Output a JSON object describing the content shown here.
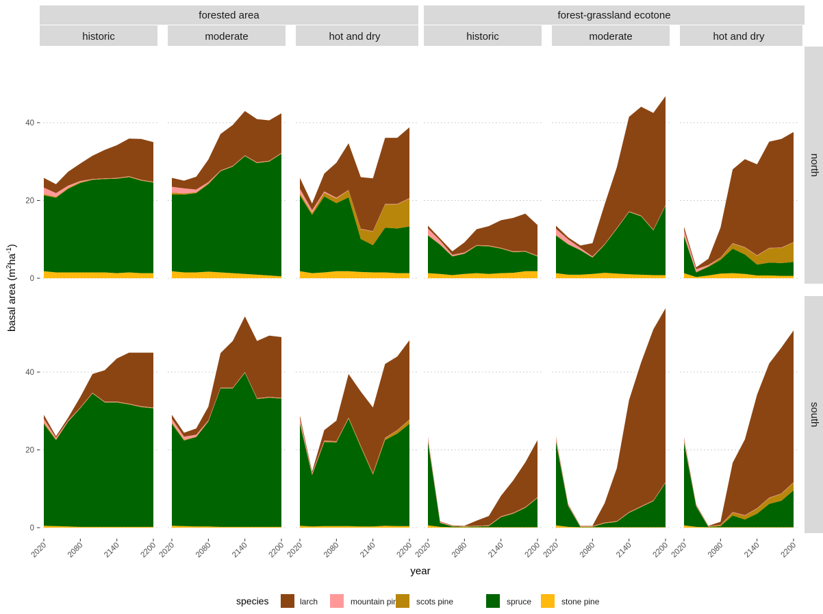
{
  "figure": {
    "y_axis_label": "basal area (m",
    "y_axis_label_sup1": "2",
    "y_axis_label_mid": "ha",
    "y_axis_label_sup2": "-1",
    "y_axis_label_end": ")",
    "x_axis_label": "year",
    "legend_title": "species"
  },
  "chart_data": {
    "type": "area",
    "stacked": true,
    "xlabel": "year",
    "ylabel": "basal area (m2ha-1)",
    "ylim": [
      0,
      57
    ],
    "x_ticks": [
      2020,
      2080,
      2140,
      2200
    ],
    "y_ticks": [
      0,
      20,
      40
    ],
    "grid": true,
    "legend_position": "bottom",
    "x": [
      2020,
      2040,
      2060,
      2080,
      2100,
      2120,
      2140,
      2160,
      2180,
      2200
    ],
    "species": [
      {
        "name": "stone pine",
        "color": "#FFB90F"
      },
      {
        "name": "spruce",
        "color": "#006400"
      },
      {
        "name": "scots pine",
        "color": "#B8860B"
      },
      {
        "name": "mountain pine",
        "color": "#FF9999"
      },
      {
        "name": "larch",
        "color": "#8B4513"
      }
    ],
    "legend_order": [
      "larch",
      "mountain pine",
      "scots pine",
      "spruce",
      "stone pine"
    ],
    "area_groups": [
      "forested area",
      "forest-grassland ecotone"
    ],
    "scenarios": [
      "historic",
      "moderate",
      "hot and dry"
    ],
    "rows": [
      "north",
      "south"
    ],
    "panels": [
      {
        "row": "north",
        "area": "forested area",
        "scenario": "historic",
        "series": {
          "stone pine": [
            1.8,
            1.5,
            1.5,
            1.5,
            1.5,
            1.5,
            1.3,
            1.5,
            1.3,
            1.3
          ],
          "spruce": [
            19.5,
            19.2,
            21.5,
            23,
            23.8,
            24,
            24.3,
            24.5,
            23.8,
            23.3
          ],
          "scots pine": [
            0.3,
            0.2,
            0.2,
            0.2,
            0.1,
            0.1,
            0.1,
            0.1,
            0.1,
            0.1
          ],
          "mountain pine": [
            1.7,
            1,
            0.6,
            0.3,
            0.1,
            0.1,
            0.1,
            0.1,
            0.1,
            0.1
          ],
          "larch": [
            2.5,
            2.3,
            3.6,
            4.5,
            6,
            7.3,
            8.4,
            9.7,
            10.5,
            10.2
          ]
        }
      },
      {
        "row": "north",
        "area": "forested area",
        "scenario": "moderate",
        "series": {
          "stone pine": [
            1.8,
            1.5,
            1.5,
            1.7,
            1.5,
            1.3,
            1.1,
            0.9,
            0.7,
            0.5
          ],
          "spruce": [
            19.7,
            20,
            20.4,
            22.5,
            26,
            27.4,
            30.3,
            28.7,
            29.3,
            31.5
          ],
          "scots pine": [
            0.5,
            0.3,
            0.2,
            0.2,
            0.1,
            0.1,
            0.1,
            0.1,
            0.1,
            0.1
          ],
          "mountain pine": [
            1.5,
            1.3,
            0.7,
            0.3,
            0.1,
            0.1,
            0.1,
            0.1,
            0.1,
            0.1
          ],
          "larch": [
            2.3,
            2.0,
            3.3,
            5.8,
            9.4,
            10.5,
            11.4,
            11.1,
            10.4,
            10.2
          ]
        }
      },
      {
        "row": "north",
        "area": "forested area",
        "scenario": "hot and dry",
        "series": {
          "stone pine": [
            1.8,
            1.3,
            1.5,
            1.8,
            1.8,
            1.6,
            1.5,
            1.5,
            1.3,
            1.3
          ],
          "spruce": [
            19.5,
            15,
            19.5,
            17.5,
            19,
            8.5,
            7,
            11.5,
            11.5,
            12
          ],
          "scots pine": [
            0.5,
            0.5,
            1,
            1.2,
            1.8,
            2.5,
            3.5,
            6,
            6.2,
            7.2
          ],
          "mountain pine": [
            1.2,
            0.7,
            0.3,
            0.2,
            0.1,
            0.1,
            0.1,
            0.1,
            0.1,
            0.1
          ],
          "larch": [
            2.8,
            1.7,
            4.6,
            9,
            12,
            13.3,
            13.6,
            17,
            17,
            18.2
          ]
        }
      },
      {
        "row": "north",
        "area": "forest-grassland ecotone",
        "scenario": "historic",
        "series": {
          "stone pine": [
            1.3,
            1.1,
            0.8,
            1.1,
            1.3,
            1.1,
            1.3,
            1.4,
            1.8,
            1.8
          ],
          "spruce": [
            9.7,
            7.5,
            4.8,
            5.2,
            7,
            7.1,
            6.3,
            5.3,
            5,
            3.8
          ],
          "scots pine": [
            0.1,
            0.1,
            0.1,
            0.1,
            0.1,
            0.1,
            0.1,
            0.1,
            0.1,
            0.1
          ],
          "mountain pine": [
            1.7,
            1,
            0.3,
            0.2,
            0.1,
            0.1,
            0.1,
            0.1,
            0.1,
            0.1
          ],
          "larch": [
            0.7,
            0.5,
            0.9,
            2.6,
            4.1,
            5,
            7.1,
            8.6,
            9.6,
            7.9
          ]
        }
      },
      {
        "row": "north",
        "area": "forest-grassland ecotone",
        "scenario": "moderate",
        "series": {
          "stone pine": [
            1.3,
            0.9,
            0.9,
            1.1,
            1.4,
            1.2,
            1,
            0.9,
            0.8,
            0.8
          ],
          "spruce": [
            9.7,
            7.8,
            6.3,
            4.2,
            7.2,
            11.5,
            16,
            15,
            11.5,
            17.8
          ],
          "scots pine": [
            0.1,
            0.1,
            0.1,
            0.1,
            0.1,
            0.1,
            0.1,
            0.1,
            0.1,
            0.1
          ],
          "mountain pine": [
            1.6,
            1.2,
            0.5,
            0.2,
            0.1,
            0.1,
            0.1,
            0.1,
            0.1,
            0.1
          ],
          "larch": [
            0.8,
            0.5,
            0.6,
            3.4,
            10.2,
            15.6,
            24.3,
            28,
            30,
            28
          ]
        }
      },
      {
        "row": "north",
        "area": "forest-grassland ecotone",
        "scenario": "hot and dry",
        "series": {
          "stone pine": [
            1.3,
            0.3,
            0.7,
            1.2,
            1.3,
            1.1,
            0.7,
            0.7,
            0.6,
            0.6
          ],
          "spruce": [
            9.5,
            1.2,
            2.2,
            3.5,
            6.3,
            5,
            2.8,
            3.3,
            3.3,
            3.6
          ],
          "scots pine": [
            0.2,
            0.1,
            0.2,
            0.5,
            1.3,
            1.8,
            2.3,
            3.7,
            3.9,
            5
          ],
          "mountain pine": [
            1.4,
            0.7,
            0.3,
            0.1,
            0.1,
            0.1,
            0.1,
            0.1,
            0.1,
            0.1
          ],
          "larch": [
            0.8,
            0.5,
            1.6,
            7.7,
            19,
            22.6,
            23.4,
            27.3,
            27.9,
            28.3
          ]
        }
      },
      {
        "row": "south",
        "area": "forested area",
        "scenario": "historic",
        "series": {
          "stone pine": [
            0.5,
            0.4,
            0.3,
            0.2,
            0.2,
            0.2,
            0.2,
            0.2,
            0.2,
            0.2
          ],
          "spruce": [
            26.2,
            22.1,
            27,
            30.5,
            34.3,
            32,
            32,
            31.5,
            30.8,
            30.5
          ],
          "scots pine": [
            0.3,
            0.2,
            0.1,
            0.1,
            0.1,
            0.1,
            0.1,
            0.1,
            0.1,
            0.1
          ],
          "mountain pine": [
            1,
            0.4,
            0.2,
            0.1,
            0.1,
            0.1,
            0.1,
            0.1,
            0.1,
            0.1
          ],
          "larch": [
            1,
            0.4,
            0.7,
            2.7,
            4.8,
            8.1,
            11.1,
            13.1,
            13.8,
            14.1
          ]
        }
      },
      {
        "row": "south",
        "area": "forested area",
        "scenario": "moderate",
        "series": {
          "stone pine": [
            0.5,
            0.4,
            0.3,
            0.3,
            0.2,
            0.2,
            0.2,
            0.2,
            0.2,
            0.2
          ],
          "spruce": [
            26.2,
            22,
            23,
            27,
            35.6,
            35.6,
            39.6,
            32.9,
            33.2,
            33
          ],
          "scots pine": [
            0.3,
            0.2,
            0.1,
            0.1,
            0.1,
            0.1,
            0.1,
            0.1,
            0.1,
            0.1
          ],
          "mountain pine": [
            1,
            0.8,
            0.5,
            0.2,
            0.1,
            0.1,
            0.1,
            0.1,
            0.1,
            0.1
          ],
          "larch": [
            1,
            1,
            1.6,
            3.5,
            8.9,
            12,
            14.3,
            14.7,
            15.8,
            15.6
          ]
        }
      },
      {
        "row": "south",
        "area": "forested area",
        "scenario": "hot and dry",
        "series": {
          "stone pine": [
            0.5,
            0.3,
            0.4,
            0.4,
            0.4,
            0.3,
            0.3,
            0.5,
            0.4,
            0.4
          ],
          "spruce": [
            26.3,
            13.2,
            21.6,
            21.5,
            27.6,
            20.4,
            13.3,
            22,
            23.8,
            26.3
          ],
          "scots pine": [
            0.3,
            0.2,
            0.2,
            0.2,
            0.2,
            0.3,
            0.3,
            0.5,
            0.8,
            1
          ],
          "mountain pine": [
            1,
            0.3,
            0.2,
            0.1,
            0.1,
            0.1,
            0.1,
            0.1,
            0.1,
            0.1
          ],
          "larch": [
            0.7,
            0.4,
            2.7,
            5.3,
            11.2,
            13.9,
            16.9,
            19,
            18.9,
            20.4
          ]
        }
      },
      {
        "row": "south",
        "area": "forest-grassland ecotone",
        "scenario": "historic",
        "series": {
          "stone pine": [
            0.6,
            0.2,
            0.1,
            0.1,
            0.1,
            0.1,
            0.1,
            0.1,
            0.1,
            0.1
          ],
          "spruce": [
            21.5,
            1,
            0.2,
            0.1,
            0.2,
            0.3,
            2.6,
            3.5,
            5,
            7.5
          ],
          "scots pine": [
            0.3,
            0.1,
            0.1,
            0.1,
            0.1,
            0.1,
            0.1,
            0.1,
            0.1,
            0.1
          ],
          "mountain pine": [
            0.8,
            0.2,
            0.1,
            0.1,
            0.1,
            0.1,
            0.1,
            0.1,
            0.1,
            0.1
          ],
          "larch": [
            0.2,
            0.1,
            0.1,
            0.1,
            1.3,
            2.4,
            5.3,
            8.3,
            11.5,
            14.7
          ]
        }
      },
      {
        "row": "south",
        "area": "forest-grassland ecotone",
        "scenario": "moderate",
        "series": {
          "stone pine": [
            0.6,
            0.2,
            0.1,
            0.1,
            0.1,
            0.1,
            0.1,
            0.1,
            0.1,
            0.1
          ],
          "spruce": [
            21.5,
            5.4,
            0.1,
            0.1,
            1,
            1.4,
            3.7,
            5.2,
            6.7,
            11.4
          ],
          "scots pine": [
            0.3,
            0.1,
            0.1,
            0.1,
            0.1,
            0.1,
            0.1,
            0.1,
            0.1,
            0.1
          ],
          "mountain pine": [
            0.8,
            0.3,
            0.1,
            0.1,
            0.1,
            0.1,
            0.1,
            0.1,
            0.1,
            0.1
          ],
          "larch": [
            0.2,
            0.1,
            0.1,
            0.1,
            5,
            13.6,
            28.8,
            37,
            44,
            44.7
          ]
        }
      },
      {
        "row": "south",
        "area": "forest-grassland ecotone",
        "scenario": "hot and dry",
        "series": {
          "stone pine": [
            0.6,
            0.2,
            0.1,
            0.1,
            0.1,
            0.1,
            0.1,
            0.1,
            0.1,
            0.1
          ],
          "spruce": [
            21.3,
            5.3,
            0.1,
            0.3,
            3,
            2,
            3.5,
            6,
            6.8,
            9.5
          ],
          "scots pine": [
            0.3,
            0.1,
            0.1,
            0.2,
            0.8,
            1,
            1.3,
            1.5,
            1.8,
            2
          ],
          "mountain pine": [
            0.8,
            0.3,
            0.1,
            0.1,
            0.1,
            0.1,
            0.1,
            0.1,
            0.1,
            0.1
          ],
          "larch": [
            0.2,
            0.1,
            0.1,
            0.8,
            12.7,
            19.5,
            29.2,
            34.5,
            37.5,
            39
          ]
        }
      }
    ]
  }
}
